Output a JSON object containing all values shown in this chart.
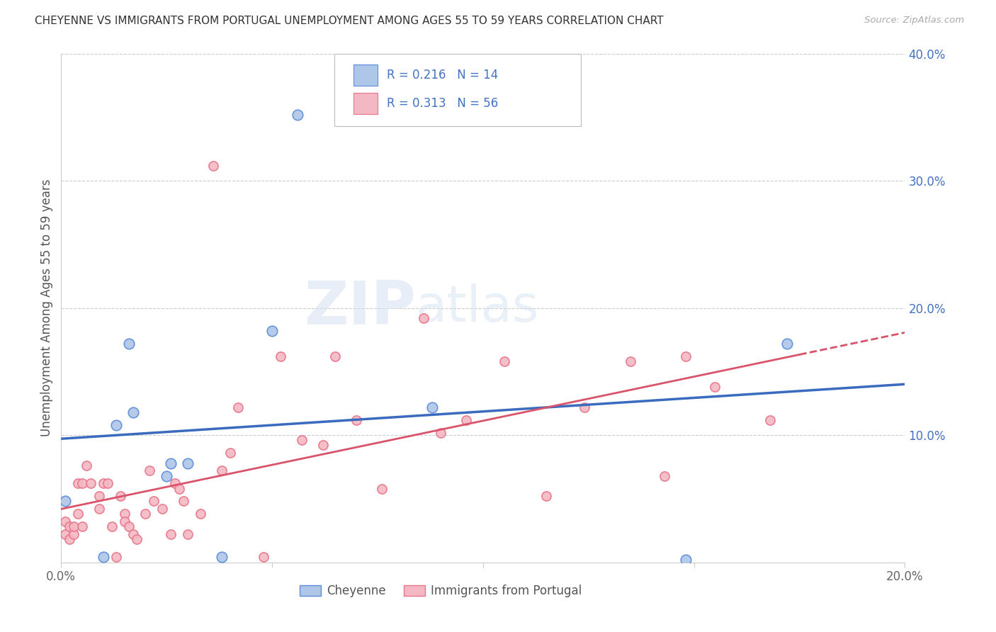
{
  "title": "CHEYENNE VS IMMIGRANTS FROM PORTUGAL UNEMPLOYMENT AMONG AGES 55 TO 59 YEARS CORRELATION CHART",
  "source": "Source: ZipAtlas.com",
  "ylabel": "Unemployment Among Ages 55 to 59 years",
  "xlim": [
    0.0,
    0.2
  ],
  "ylim": [
    0.0,
    0.4
  ],
  "cheyenne_R": "0.216",
  "cheyenne_N": "14",
  "portugal_R": "0.313",
  "portugal_N": "56",
  "cheyenne_color": "#aec6e8",
  "portugal_color": "#f4b8c4",
  "cheyenne_edge_color": "#5b8dd9",
  "portugal_edge_color": "#e8758a",
  "cheyenne_line_color": "#3a6bbf",
  "portugal_line_color": "#d9536a",
  "label_color": "#4472c4",
  "watermark_zip": "ZIP",
  "watermark_atlas": "atlas",
  "cheyenne_x": [
    0.001,
    0.01,
    0.013,
    0.016,
    0.017,
    0.025,
    0.026,
    0.03,
    0.038,
    0.05,
    0.056,
    0.088,
    0.148,
    0.172
  ],
  "cheyenne_y": [
    0.048,
    0.004,
    0.108,
    0.172,
    0.118,
    0.068,
    0.078,
    0.078,
    0.004,
    0.182,
    0.352,
    0.122,
    0.002,
    0.172
  ],
  "portugal_x": [
    0.001,
    0.001,
    0.002,
    0.002,
    0.003,
    0.003,
    0.004,
    0.004,
    0.005,
    0.005,
    0.006,
    0.007,
    0.009,
    0.009,
    0.01,
    0.011,
    0.012,
    0.013,
    0.014,
    0.015,
    0.015,
    0.016,
    0.017,
    0.018,
    0.02,
    0.021,
    0.022,
    0.024,
    0.026,
    0.027,
    0.028,
    0.029,
    0.03,
    0.033,
    0.036,
    0.038,
    0.04,
    0.042,
    0.048,
    0.052,
    0.057,
    0.062,
    0.065,
    0.07,
    0.076,
    0.086,
    0.09,
    0.096,
    0.105,
    0.115,
    0.124,
    0.135,
    0.143,
    0.148,
    0.155,
    0.168
  ],
  "portugal_y": [
    0.032,
    0.022,
    0.028,
    0.018,
    0.022,
    0.028,
    0.062,
    0.038,
    0.028,
    0.062,
    0.076,
    0.062,
    0.052,
    0.042,
    0.062,
    0.062,
    0.028,
    0.004,
    0.052,
    0.038,
    0.032,
    0.028,
    0.022,
    0.018,
    0.038,
    0.072,
    0.048,
    0.042,
    0.022,
    0.062,
    0.058,
    0.048,
    0.022,
    0.038,
    0.312,
    0.072,
    0.086,
    0.122,
    0.004,
    0.162,
    0.096,
    0.092,
    0.162,
    0.112,
    0.058,
    0.192,
    0.102,
    0.112,
    0.158,
    0.052,
    0.122,
    0.158,
    0.068,
    0.162,
    0.138,
    0.112
  ]
}
